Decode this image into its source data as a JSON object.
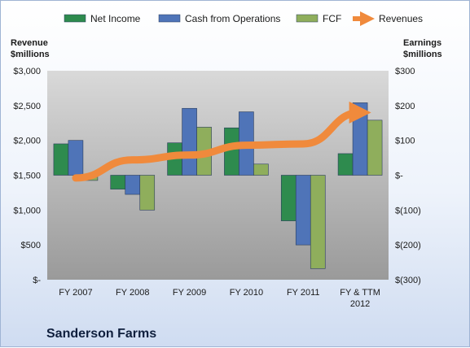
{
  "company_name": "Sanderson Farms",
  "chart_data": {
    "type": "bar",
    "categories": [
      "FY 2007",
      "FY 2008",
      "FY 2009",
      "FY 2010",
      "FY 2011",
      "FY & TTM 2012"
    ],
    "left_axis": {
      "title_lines": [
        "Revenue",
        "$millions"
      ],
      "ylim": [
        0,
        3000
      ],
      "ticks": [
        0,
        500,
        1000,
        1500,
        2000,
        2500,
        3000
      ],
      "tick_labels": [
        "$-",
        "$500",
        "$1,000",
        "$1,500",
        "$2,000",
        "$2,500",
        "$3,000"
      ]
    },
    "right_axis": {
      "title_lines": [
        "Earnings",
        "$millions"
      ],
      "ylim": [
        -300,
        300
      ],
      "ticks": [
        -300,
        -200,
        -100,
        0,
        100,
        200,
        300
      ],
      "tick_labels": [
        "$(300)",
        "$(200)",
        "$(100)",
        "$-",
        "$100",
        "$200",
        "$300"
      ]
    },
    "series": [
      {
        "name": "Net Income",
        "axis": "right",
        "kind": "bar",
        "color": "#2e8b4e",
        "values": [
          90,
          -40,
          93,
          136,
          -131,
          62
        ]
      },
      {
        "name": "Cash from Operations",
        "axis": "right",
        "kind": "bar",
        "color": "#4f74b8",
        "values": [
          100,
          -55,
          192,
          182,
          -200,
          208
        ]
      },
      {
        "name": "FCF",
        "axis": "right",
        "kind": "bar",
        "color": "#8fae5c",
        "values": [
          -15,
          -100,
          138,
          32,
          -268,
          158
        ]
      },
      {
        "name": "Revenues",
        "axis": "left",
        "kind": "line-arrow",
        "color": "#f08a3c",
        "values": [
          1460,
          1720,
          1790,
          1930,
          1950,
          2400
        ]
      }
    ],
    "legend_position": "top",
    "grid": false
  }
}
